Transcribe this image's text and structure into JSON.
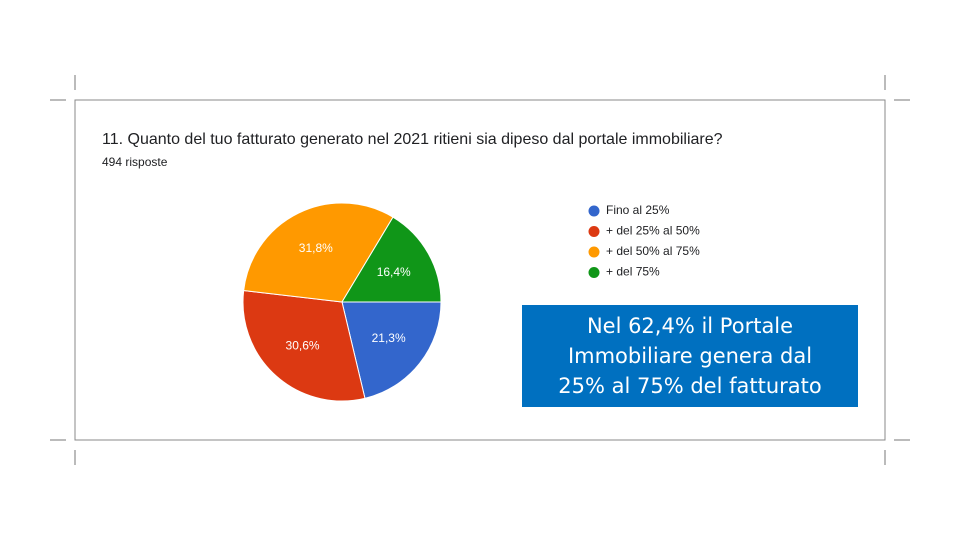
{
  "chart_data": {
    "type": "pie",
    "title": "11. Quanto del tuo fatturato generato nel 2021 ritieni sia dipeso dal portale immobiliare?",
    "subtitle": "494 risposte",
    "categories": [
      "Fino al 25%",
      "+ del 25% al 50%",
      "+ del 50% al 75%",
      "+ del 75%"
    ],
    "values": [
      21.3,
      30.6,
      31.8,
      16.4
    ],
    "value_labels": [
      "21,3%",
      "30,6%",
      "31,8%",
      "16,4%"
    ],
    "colors": [
      "#3366cc",
      "#dc3912",
      "#ff9900",
      "#109618"
    ],
    "annotation": "Nel 62,4% il Portale Immobiliare genera dal 25% al 75% del fatturato"
  }
}
